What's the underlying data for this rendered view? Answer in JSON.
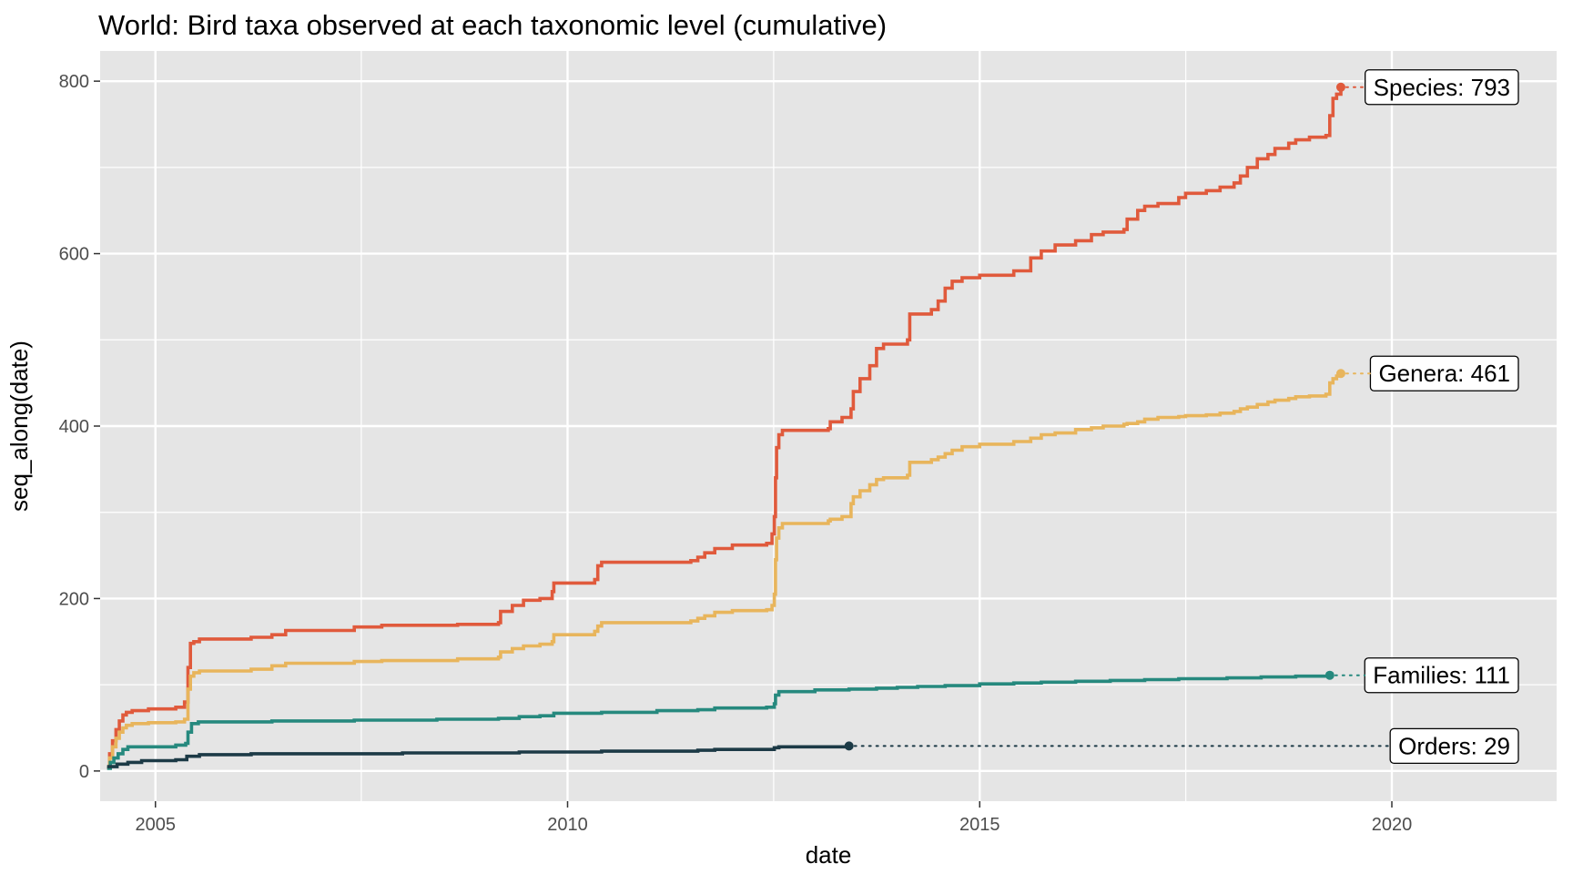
{
  "chart_data": {
    "type": "line",
    "title": "World: Bird taxa observed at each taxonomic level (cumulative)",
    "xlabel": "date",
    "ylabel": "seq_along(date)",
    "xlim": [
      "2004-05-01",
      "2021-12-31"
    ],
    "ylim": [
      -35,
      835
    ],
    "x_ticks": [
      {
        "label": "2005",
        "date": "2005-01-01"
      },
      {
        "label": "2010",
        "date": "2010-01-01"
      },
      {
        "label": "2015",
        "date": "2015-01-01"
      },
      {
        "label": "2020",
        "date": "2020-01-01"
      }
    ],
    "y_ticks": [
      {
        "label": "0",
        "value": 0
      },
      {
        "label": "200",
        "value": 200
      },
      {
        "label": "400",
        "value": 400
      },
      {
        "label": "600",
        "value": 600
      },
      {
        "label": "800",
        "value": 800
      }
    ],
    "grid": true,
    "background": "#e5e5e5",
    "grid_color": "#ffffff",
    "series": [
      {
        "label": "Species: 793",
        "color": "#e05a3c",
        "end_value": 793,
        "points": [
          [
            "2004-06-01",
            4
          ],
          [
            "2004-06-12",
            20
          ],
          [
            "2004-06-25",
            35
          ],
          [
            "2004-07-10",
            48
          ],
          [
            "2004-07-25",
            58
          ],
          [
            "2004-08-10",
            65
          ],
          [
            "2004-08-25",
            68
          ],
          [
            "2004-09-20",
            70
          ],
          [
            "2004-12-01",
            72
          ],
          [
            "2005-04-01",
            74
          ],
          [
            "2005-05-10",
            80
          ],
          [
            "2005-05-25",
            120
          ],
          [
            "2005-06-05",
            148
          ],
          [
            "2005-06-20",
            150
          ],
          [
            "2005-07-15",
            153
          ],
          [
            "2006-03-01",
            155
          ],
          [
            "2006-06-01",
            158
          ],
          [
            "2006-08-01",
            163
          ],
          [
            "2007-06-01",
            167
          ],
          [
            "2007-10-01",
            169
          ],
          [
            "2008-09-01",
            170
          ],
          [
            "2009-03-01",
            172
          ],
          [
            "2009-03-10",
            185
          ],
          [
            "2009-05-01",
            192
          ],
          [
            "2009-06-20",
            198
          ],
          [
            "2009-09-01",
            200
          ],
          [
            "2009-10-25",
            208
          ],
          [
            "2009-11-01",
            218
          ],
          [
            "2010-05-01",
            222
          ],
          [
            "2010-05-15",
            238
          ],
          [
            "2010-06-01",
            242
          ],
          [
            "2011-07-01",
            244
          ],
          [
            "2011-08-01",
            248
          ],
          [
            "2011-09-01",
            253
          ],
          [
            "2011-10-15",
            258
          ],
          [
            "2012-01-01",
            262
          ],
          [
            "2012-06-01",
            264
          ],
          [
            "2012-06-25",
            275
          ],
          [
            "2012-07-05",
            295
          ],
          [
            "2012-07-10",
            340
          ],
          [
            "2012-07-15",
            375
          ],
          [
            "2012-07-25",
            390
          ],
          [
            "2012-08-10",
            395
          ],
          [
            "2013-03-01",
            397
          ],
          [
            "2013-03-10",
            405
          ],
          [
            "2013-05-01",
            410
          ],
          [
            "2013-06-10",
            420
          ],
          [
            "2013-06-20",
            440
          ],
          [
            "2013-07-20",
            455
          ],
          [
            "2013-09-01",
            470
          ],
          [
            "2013-10-01",
            490
          ],
          [
            "2013-11-01",
            495
          ],
          [
            "2014-02-15",
            500
          ],
          [
            "2014-02-25",
            530
          ],
          [
            "2014-06-01",
            535
          ],
          [
            "2014-07-01",
            545
          ],
          [
            "2014-08-01",
            560
          ],
          [
            "2014-09-01",
            568
          ],
          [
            "2014-10-15",
            572
          ],
          [
            "2015-01-01",
            575
          ],
          [
            "2015-06-01",
            580
          ],
          [
            "2015-08-15",
            595
          ],
          [
            "2015-10-01",
            603
          ],
          [
            "2015-12-01",
            610
          ],
          [
            "2016-03-01",
            615
          ],
          [
            "2016-05-10",
            622
          ],
          [
            "2016-07-01",
            625
          ],
          [
            "2016-10-01",
            628
          ],
          [
            "2016-10-15",
            640
          ],
          [
            "2016-12-01",
            650
          ],
          [
            "2017-01-01",
            655
          ],
          [
            "2017-03-01",
            658
          ],
          [
            "2017-06-01",
            665
          ],
          [
            "2017-07-01",
            670
          ],
          [
            "2017-10-01",
            673
          ],
          [
            "2017-12-01",
            677
          ],
          [
            "2018-02-01",
            682
          ],
          [
            "2018-03-01",
            690
          ],
          [
            "2018-04-01",
            700
          ],
          [
            "2018-05-15",
            710
          ],
          [
            "2018-07-01",
            715
          ],
          [
            "2018-08-01",
            722
          ],
          [
            "2018-10-01",
            728
          ],
          [
            "2018-11-01",
            732
          ],
          [
            "2019-01-01",
            735
          ],
          [
            "2019-03-15",
            737
          ],
          [
            "2019-04-01",
            760
          ],
          [
            "2019-04-15",
            780
          ],
          [
            "2019-05-01",
            785
          ],
          [
            "2019-05-20",
            793
          ]
        ]
      },
      {
        "label": "Genera: 461",
        "color": "#e8b55c",
        "end_value": 461,
        "points": [
          [
            "2004-06-01",
            4
          ],
          [
            "2004-06-12",
            15
          ],
          [
            "2004-06-25",
            28
          ],
          [
            "2004-07-10",
            38
          ],
          [
            "2004-07-25",
            45
          ],
          [
            "2004-08-10",
            50
          ],
          [
            "2004-08-25",
            53
          ],
          [
            "2004-09-20",
            55
          ],
          [
            "2004-12-01",
            56
          ],
          [
            "2005-04-01",
            57
          ],
          [
            "2005-05-10",
            60
          ],
          [
            "2005-05-25",
            95
          ],
          [
            "2005-06-05",
            110
          ],
          [
            "2005-06-20",
            114
          ],
          [
            "2005-07-15",
            116
          ],
          [
            "2006-03-01",
            118
          ],
          [
            "2006-06-01",
            122
          ],
          [
            "2006-08-01",
            125
          ],
          [
            "2007-06-01",
            127
          ],
          [
            "2007-10-01",
            128
          ],
          [
            "2008-09-01",
            130
          ],
          [
            "2009-03-01",
            132
          ],
          [
            "2009-03-10",
            138
          ],
          [
            "2009-05-01",
            142
          ],
          [
            "2009-06-20",
            145
          ],
          [
            "2009-09-01",
            147
          ],
          [
            "2009-10-25",
            150
          ],
          [
            "2009-11-01",
            158
          ],
          [
            "2010-05-01",
            162
          ],
          [
            "2010-05-15",
            168
          ],
          [
            "2010-06-01",
            172
          ],
          [
            "2011-07-01",
            174
          ],
          [
            "2011-08-01",
            177
          ],
          [
            "2011-09-01",
            180
          ],
          [
            "2011-10-15",
            184
          ],
          [
            "2012-01-01",
            186
          ],
          [
            "2012-06-01",
            187
          ],
          [
            "2012-06-25",
            192
          ],
          [
            "2012-07-05",
            205
          ],
          [
            "2012-07-10",
            245
          ],
          [
            "2012-07-15",
            270
          ],
          [
            "2012-07-25",
            282
          ],
          [
            "2012-08-10",
            287
          ],
          [
            "2013-03-01",
            290
          ],
          [
            "2013-03-10",
            292
          ],
          [
            "2013-05-01",
            295
          ],
          [
            "2013-06-10",
            310
          ],
          [
            "2013-06-20",
            318
          ],
          [
            "2013-07-20",
            325
          ],
          [
            "2013-09-01",
            332
          ],
          [
            "2013-10-01",
            338
          ],
          [
            "2013-11-01",
            340
          ],
          [
            "2014-02-15",
            343
          ],
          [
            "2014-02-25",
            358
          ],
          [
            "2014-06-01",
            361
          ],
          [
            "2014-07-01",
            364
          ],
          [
            "2014-08-01",
            368
          ],
          [
            "2014-09-01",
            372
          ],
          [
            "2014-10-15",
            376
          ],
          [
            "2015-01-01",
            379
          ],
          [
            "2015-06-01",
            382
          ],
          [
            "2015-08-15",
            386
          ],
          [
            "2015-10-01",
            390
          ],
          [
            "2015-12-01",
            392
          ],
          [
            "2016-03-01",
            396
          ],
          [
            "2016-05-10",
            398
          ],
          [
            "2016-07-01",
            400
          ],
          [
            "2016-10-01",
            402
          ],
          [
            "2016-10-15",
            403
          ],
          [
            "2016-12-01",
            405
          ],
          [
            "2017-01-01",
            408
          ],
          [
            "2017-03-01",
            410
          ],
          [
            "2017-06-01",
            411
          ],
          [
            "2017-07-01",
            412
          ],
          [
            "2017-10-01",
            413
          ],
          [
            "2017-12-01",
            415
          ],
          [
            "2018-02-01",
            417
          ],
          [
            "2018-03-01",
            420
          ],
          [
            "2018-04-01",
            422
          ],
          [
            "2018-05-15",
            425
          ],
          [
            "2018-07-01",
            428
          ],
          [
            "2018-08-01",
            430
          ],
          [
            "2018-10-01",
            432
          ],
          [
            "2018-11-01",
            434
          ],
          [
            "2019-01-01",
            435
          ],
          [
            "2019-03-15",
            437
          ],
          [
            "2019-04-01",
            450
          ],
          [
            "2019-04-15",
            455
          ],
          [
            "2019-05-01",
            458
          ],
          [
            "2019-05-20",
            461
          ]
        ]
      },
      {
        "label": "Families: 111",
        "color": "#26897e",
        "end_value": 111,
        "points": [
          [
            "2004-06-01",
            3
          ],
          [
            "2004-06-15",
            10
          ],
          [
            "2004-07-01",
            15
          ],
          [
            "2004-07-20",
            20
          ],
          [
            "2004-08-10",
            25
          ],
          [
            "2004-09-01",
            28
          ],
          [
            "2005-04-01",
            30
          ],
          [
            "2005-05-15",
            32
          ],
          [
            "2005-05-25",
            45
          ],
          [
            "2005-06-10",
            55
          ],
          [
            "2005-07-10",
            57
          ],
          [
            "2006-06-01",
            58
          ],
          [
            "2007-06-01",
            59
          ],
          [
            "2008-06-01",
            60
          ],
          [
            "2009-03-01",
            61
          ],
          [
            "2009-06-01",
            63
          ],
          [
            "2009-09-01",
            64
          ],
          [
            "2009-11-01",
            67
          ],
          [
            "2010-06-01",
            68
          ],
          [
            "2011-02-01",
            70
          ],
          [
            "2011-08-01",
            71
          ],
          [
            "2011-10-15",
            73
          ],
          [
            "2012-06-01",
            74
          ],
          [
            "2012-07-05",
            78
          ],
          [
            "2012-07-10",
            88
          ],
          [
            "2012-07-25",
            92
          ],
          [
            "2013-01-01",
            94
          ],
          [
            "2013-06-01",
            95
          ],
          [
            "2013-10-01",
            96
          ],
          [
            "2014-01-01",
            97
          ],
          [
            "2014-04-01",
            98
          ],
          [
            "2014-08-01",
            99
          ],
          [
            "2015-01-01",
            101
          ],
          [
            "2015-06-01",
            102
          ],
          [
            "2015-10-01",
            103
          ],
          [
            "2016-03-01",
            104
          ],
          [
            "2016-08-01",
            105
          ],
          [
            "2017-01-01",
            106
          ],
          [
            "2017-06-01",
            107
          ],
          [
            "2018-01-01",
            108
          ],
          [
            "2018-06-01",
            109
          ],
          [
            "2018-11-01",
            110
          ],
          [
            "2019-04-01",
            111
          ]
        ]
      },
      {
        "label": "Orders: 29",
        "color": "#1c3a46",
        "end_value": 29,
        "points": [
          [
            "2004-06-01",
            5
          ],
          [
            "2004-07-15",
            8
          ],
          [
            "2004-09-01",
            10
          ],
          [
            "2004-11-01",
            12
          ],
          [
            "2005-04-01",
            13
          ],
          [
            "2005-05-20",
            17
          ],
          [
            "2005-07-15",
            19
          ],
          [
            "2006-03-01",
            20
          ],
          [
            "2008-01-01",
            21
          ],
          [
            "2009-06-01",
            22
          ],
          [
            "2010-06-01",
            23
          ],
          [
            "2011-08-01",
            24
          ],
          [
            "2011-10-15",
            25
          ],
          [
            "2012-07-05",
            27
          ],
          [
            "2012-07-25",
            28
          ],
          [
            "2013-06-01",
            29
          ]
        ]
      }
    ]
  }
}
